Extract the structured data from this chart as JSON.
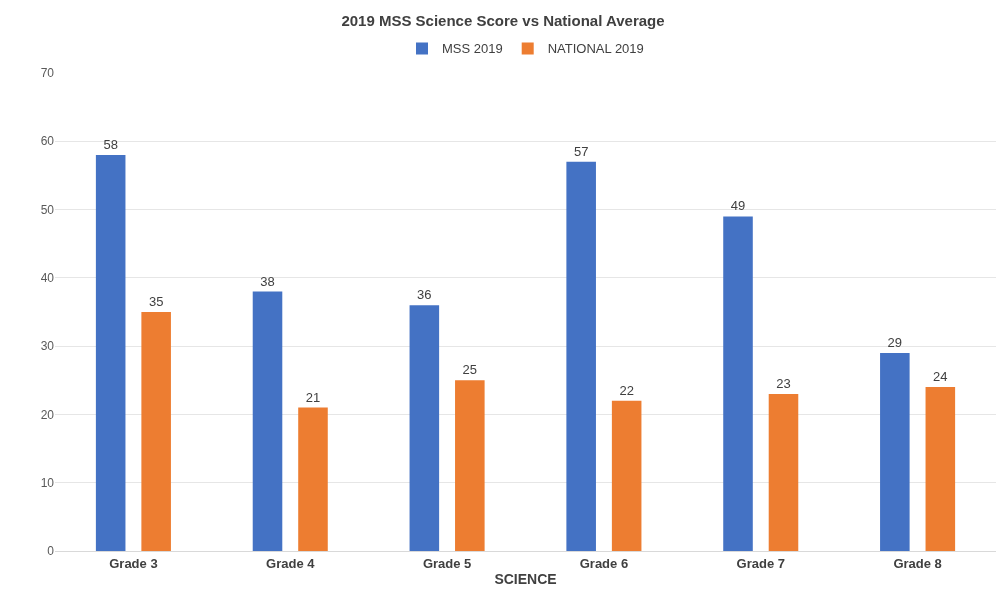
{
  "chart_data": {
    "type": "bar",
    "title": "2019 MSS Science Score vs National Average",
    "xlabel": "SCIENCE",
    "categories": [
      "Grade 3",
      "Grade 4",
      "Grade 5",
      "Grade 6",
      "Grade 7",
      "Grade 8"
    ],
    "series": [
      {
        "name": "MSS 2019",
        "color": "#4472c4",
        "values": [
          58,
          38,
          36,
          57,
          49,
          29
        ]
      },
      {
        "name": "NATIONAL 2019",
        "color": "#ed7d31",
        "values": [
          35,
          21,
          25,
          22,
          23,
          24
        ]
      }
    ],
    "ylim": [
      0,
      70
    ],
    "yticks": [
      0,
      10,
      20,
      30,
      40,
      50,
      60,
      70
    ],
    "grid": "y",
    "legend": "top",
    "data_labels": true
  }
}
